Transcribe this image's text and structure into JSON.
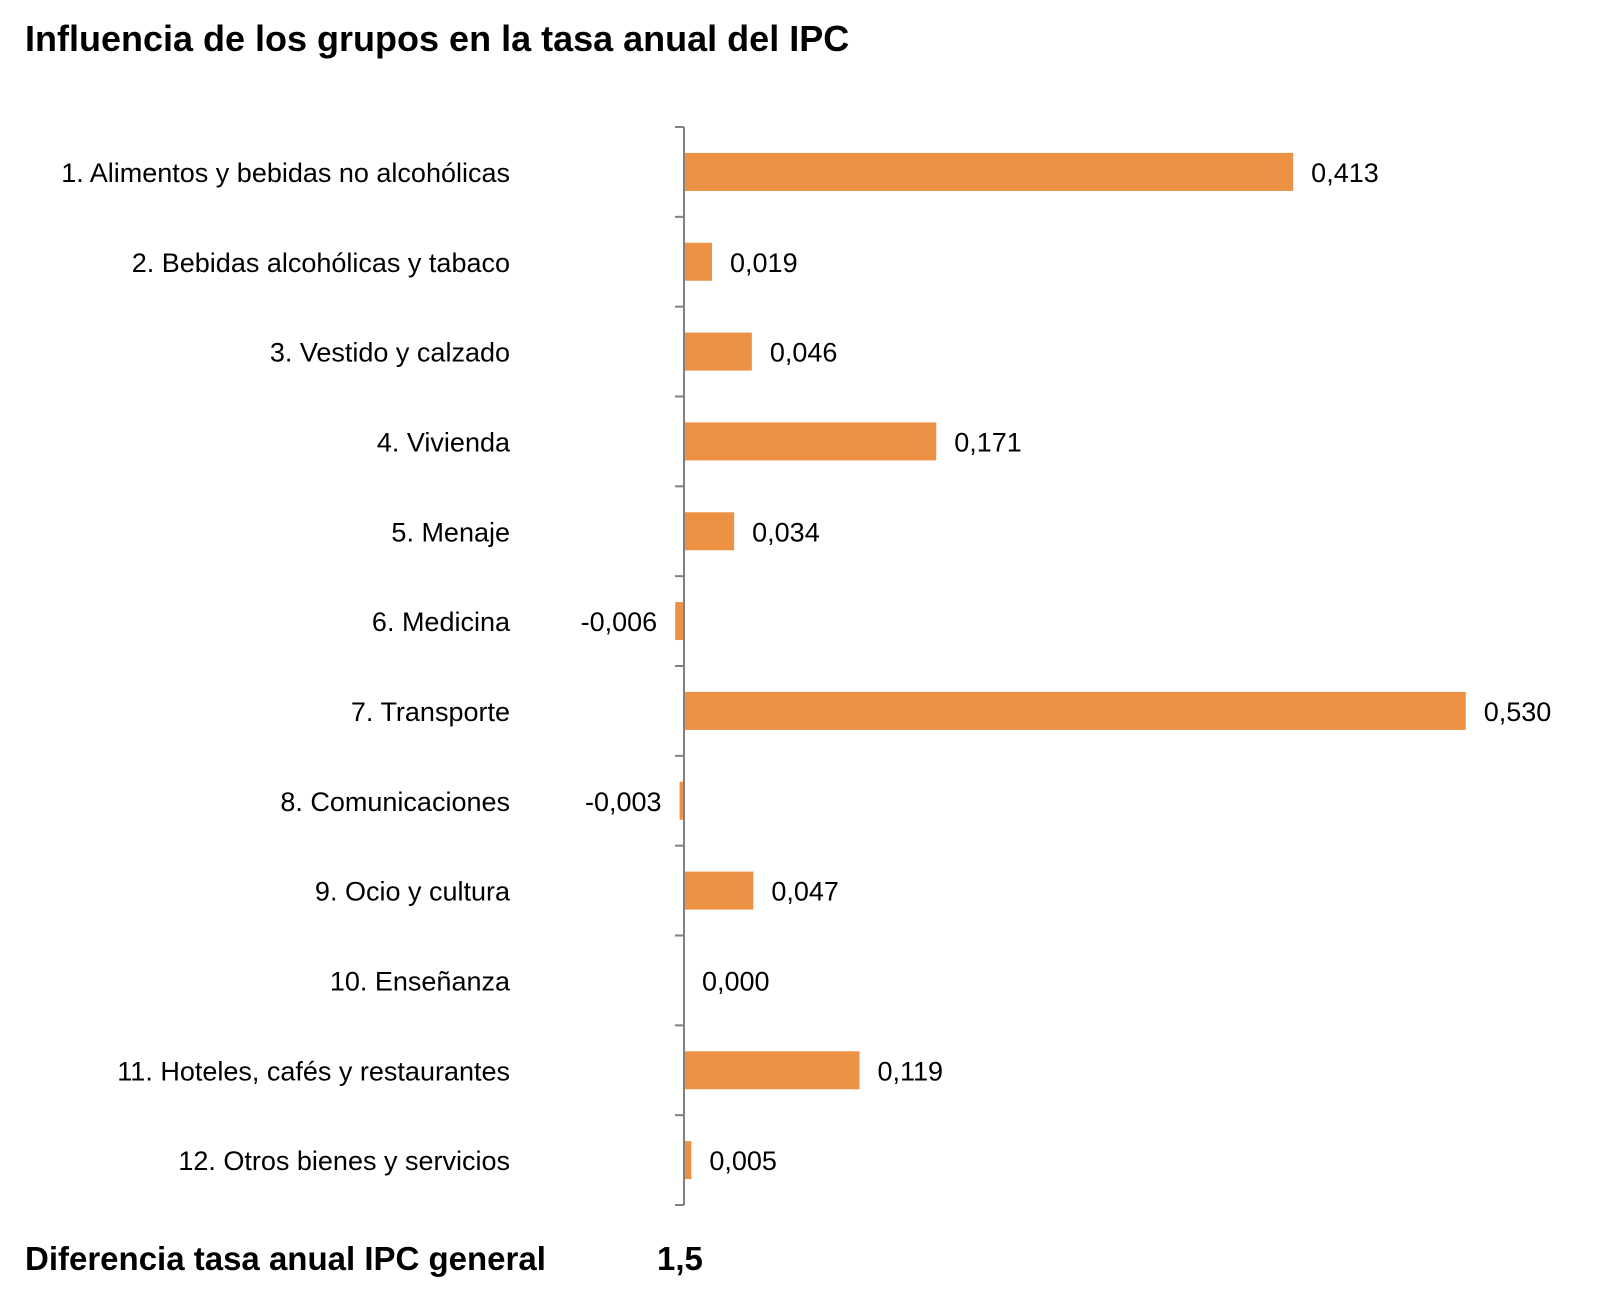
{
  "chart_data": {
    "type": "bar",
    "orientation": "horizontal",
    "title": "Influencia de los grupos en la tasa anual del IPC",
    "categories": [
      "1. Alimentos y bebidas no alcohólicas",
      "2. Bebidas alcohólicas y tabaco",
      "3. Vestido y calzado",
      "4. Vivienda",
      "5. Menaje",
      "6. Medicina",
      "7. Transporte",
      "8. Comunicaciones",
      "9. Ocio y cultura",
      "10. Enseñanza",
      "11. Hoteles, cafés y restaurantes",
      "12. Otros bienes y servicios"
    ],
    "values": [
      0.413,
      0.019,
      0.046,
      0.171,
      0.034,
      -0.006,
      0.53,
      -0.003,
      0.047,
      0.0,
      0.119,
      0.005
    ],
    "value_labels": [
      "0,413",
      "0,019",
      "0,046",
      "0,171",
      "0,034",
      "-0,006",
      "0,530",
      "-0,003",
      "0,047",
      "0,000",
      "0,119",
      "0,005"
    ],
    "bar_color": "#ED9245",
    "axis_color": "#808080",
    "grid": false,
    "legend": "none"
  },
  "footer": {
    "label": "Diferencia tasa anual IPC general",
    "value": "1,5"
  }
}
